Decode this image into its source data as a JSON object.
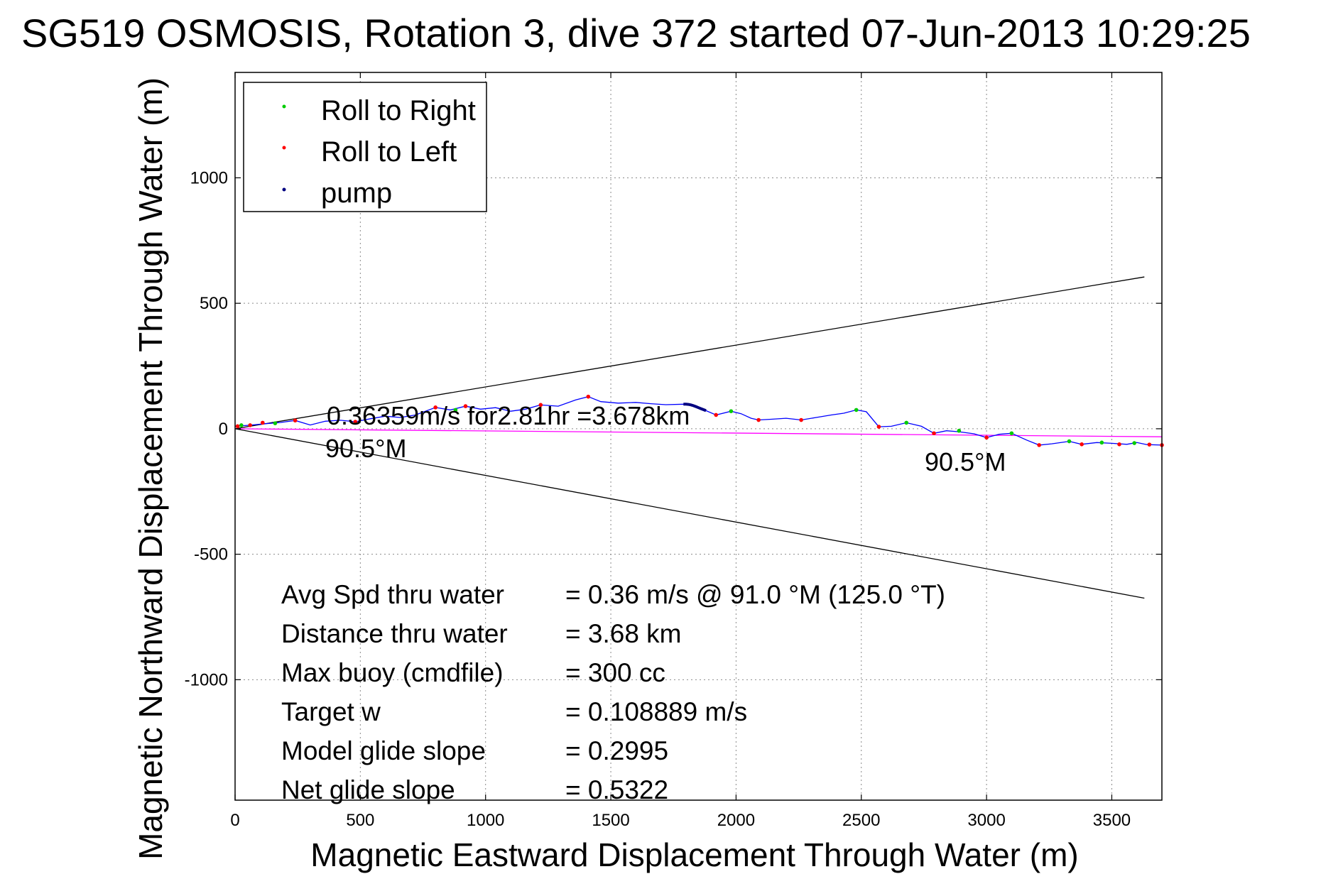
{
  "chart_data": {
    "type": "scatter",
    "title": "SG519 OSMOSIS, Rotation 3, dive 372 started 07-Jun-2013 10:29:25",
    "xlabel": "Magnetic Eastward Displacement Through Water (m)",
    "ylabel": "Magnetic Northward Displacement Through Water (m)",
    "xlim": [
      0,
      3700
    ],
    "ylim": [
      -1480,
      1420
    ],
    "xticks": [
      0,
      500,
      1000,
      1500,
      2000,
      2500,
      3000,
      3500
    ],
    "yticks": [
      -1000,
      -500,
      0,
      500,
      1000
    ],
    "grid": true,
    "legend": {
      "position": "top-left",
      "entries": [
        {
          "label": "Roll to Right",
          "color": "#00cc00"
        },
        {
          "label": "Roll to Left",
          "color": "#ff0000"
        },
        {
          "label": "pump",
          "color": "#000080"
        }
      ]
    },
    "cone_lines": [
      {
        "x": [
          0,
          3630
        ],
        "y": [
          0,
          605
        ],
        "color": "#000000"
      },
      {
        "x": [
          0,
          3630
        ],
        "y": [
          0,
          -675
        ],
        "color": "#000000"
      }
    ],
    "heading_line": {
      "x": [
        0,
        3700
      ],
      "y": [
        0,
        -32
      ],
      "color": "#ff00ff"
    },
    "track": {
      "color": "#0000ff",
      "x": [
        0,
        60,
        120,
        180,
        240,
        300,
        360,
        420,
        480,
        540,
        600,
        660,
        720,
        800,
        860,
        920,
        980,
        1040,
        1100,
        1160,
        1220,
        1290,
        1360,
        1410,
        1460,
        1530,
        1600,
        1660,
        1720,
        1790,
        1840,
        1880,
        1920,
        1980,
        2020,
        2060,
        2090,
        2140,
        2200,
        2260,
        2320,
        2380,
        2430,
        2480,
        2520,
        2570,
        2620,
        2680,
        2740,
        2790,
        2840,
        2890,
        2950,
        3000,
        3050,
        3100,
        3160,
        3210,
        3260,
        3330,
        3380,
        3440,
        3500,
        3560,
        3600,
        3640,
        3700
      ],
      "y": [
        10,
        14,
        20,
        25,
        33,
        15,
        30,
        34,
        28,
        40,
        50,
        45,
        55,
        85,
        75,
        90,
        78,
        84,
        70,
        78,
        95,
        90,
        115,
        128,
        108,
        102,
        105,
        100,
        96,
        98,
        92,
        72,
        55,
        70,
        60,
        42,
        35,
        38,
        42,
        35,
        45,
        55,
        62,
        75,
        68,
        8,
        10,
        24,
        10,
        -18,
        -8,
        -12,
        -20,
        -35,
        -22,
        -18,
        -45,
        -65,
        -60,
        -50,
        -62,
        -55,
        -58,
        -62,
        -55,
        -63,
        -65
      ]
    },
    "pump": {
      "x": [
        1790,
        1800,
        1810,
        1820,
        1830,
        1840,
        1850,
        1860,
        1870,
        1880
      ],
      "y": [
        98,
        98,
        97,
        95,
        92,
        88,
        84,
        80,
        76,
        72
      ]
    },
    "roll_right": {
      "x": [
        25,
        160,
        880,
        1980,
        2480,
        2680,
        2890,
        3100,
        3330,
        3460,
        3590
      ],
      "y": [
        14,
        22,
        75,
        70,
        75,
        24,
        -8,
        -18,
        -50,
        -55,
        -57
      ]
    },
    "roll_left": {
      "x": [
        10,
        60,
        110,
        240,
        480,
        800,
        920,
        1220,
        1410,
        1920,
        2090,
        2260,
        2570,
        2790,
        3000,
        3210,
        3380,
        3530,
        3650,
        3700
      ],
      "y": [
        10,
        14,
        24,
        33,
        28,
        85,
        90,
        95,
        128,
        55,
        35,
        35,
        8,
        -18,
        -35,
        -65,
        -62,
        -62,
        -63,
        -65
      ]
    },
    "annotations": {
      "speed": "0.36359m/s for2.81hr =3.678km",
      "heading_left": "90.5°M",
      "heading_right": "90.5°M"
    },
    "stats": [
      {
        "label": "Avg Spd thru water",
        "value": "=  0.36 m/s @  91.0 °M (125.0 °T)"
      },
      {
        "label": "Distance thru water",
        "value": "=  3.68 km"
      },
      {
        "label": "Max buoy (cmdfile)",
        "value": "= 300 cc"
      },
      {
        "label": "Target w",
        "value": "= 0.108889 m/s"
      },
      {
        "label": "Model glide slope",
        "value": "= 0.2995"
      },
      {
        "label": "Net glide slope",
        "value": "= 0.5322"
      }
    ]
  }
}
